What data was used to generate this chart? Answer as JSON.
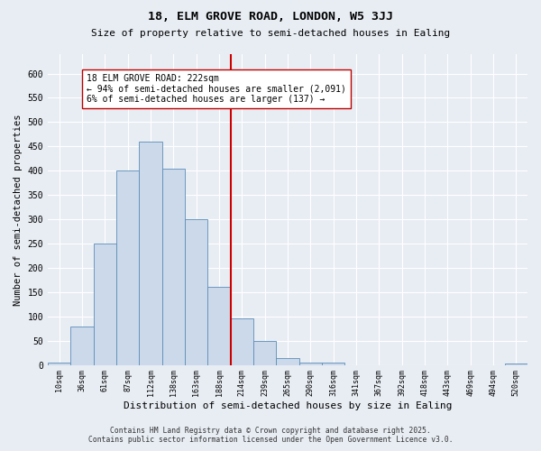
{
  "title1": "18, ELM GROVE ROAD, LONDON, W5 3JJ",
  "title2": "Size of property relative to semi-detached houses in Ealing",
  "xlabel": "Distribution of semi-detached houses by size in Ealing",
  "ylabel": "Number of semi-detached properties",
  "bin_labels": [
    "10sqm",
    "36sqm",
    "61sqm",
    "87sqm",
    "112sqm",
    "138sqm",
    "163sqm",
    "188sqm",
    "214sqm",
    "239sqm",
    "265sqm",
    "290sqm",
    "316sqm",
    "341sqm",
    "367sqm",
    "392sqm",
    "418sqm",
    "443sqm",
    "469sqm",
    "494sqm",
    "520sqm"
  ],
  "bar_heights": [
    5,
    80,
    250,
    400,
    460,
    405,
    300,
    160,
    95,
    50,
    15,
    5,
    5,
    0,
    0,
    0,
    0,
    0,
    0,
    0,
    3
  ],
  "bar_color": "#ccd9ea",
  "bar_edge_color": "#5b8db8",
  "vline_x_index": 8,
  "vline_color": "#cc0000",
  "annotation_text": "18 ELM GROVE ROAD: 222sqm\n← 94% of semi-detached houses are smaller (2,091)\n6% of semi-detached houses are larger (137) →",
  "annotation_box_color": "#ffffff",
  "annotation_box_edge_color": "#bb0000",
  "ylim": [
    0,
    640
  ],
  "yticks": [
    0,
    50,
    100,
    150,
    200,
    250,
    300,
    350,
    400,
    450,
    500,
    550,
    600
  ],
  "background_color": "#e8edf4",
  "grid_color": "#ffffff",
  "footer1": "Contains HM Land Registry data © Crown copyright and database right 2025.",
  "footer2": "Contains public sector information licensed under the Open Government Licence v3.0."
}
